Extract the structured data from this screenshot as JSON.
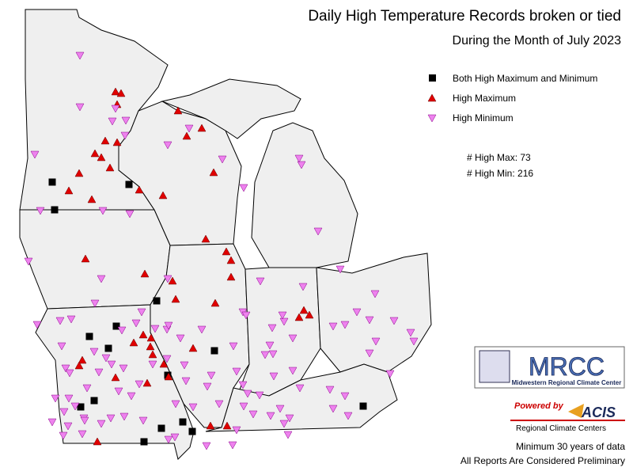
{
  "header": {
    "title": "Daily High Temperature Records broken or tied",
    "subtitle": "During the Month of July 2023"
  },
  "legend": {
    "items": [
      "Both High Maximum and Minimum",
      "High Maximum",
      "High Minimum"
    ]
  },
  "counts": [
    {
      "label": "# High Max:",
      "value": 73
    },
    {
      "label": "# High Min:",
      "value": 216
    }
  ],
  "logo": {
    "name": "MRCC",
    "subtitle": "Midwestern Regional Climate Center",
    "powered": "Powered by",
    "acis": "ACIS",
    "acis_sub": "Regional Climate Centers"
  },
  "footer": [
    "Minimum 30 years of data",
    "All Reports Are Considered Preliminary"
  ]
}
